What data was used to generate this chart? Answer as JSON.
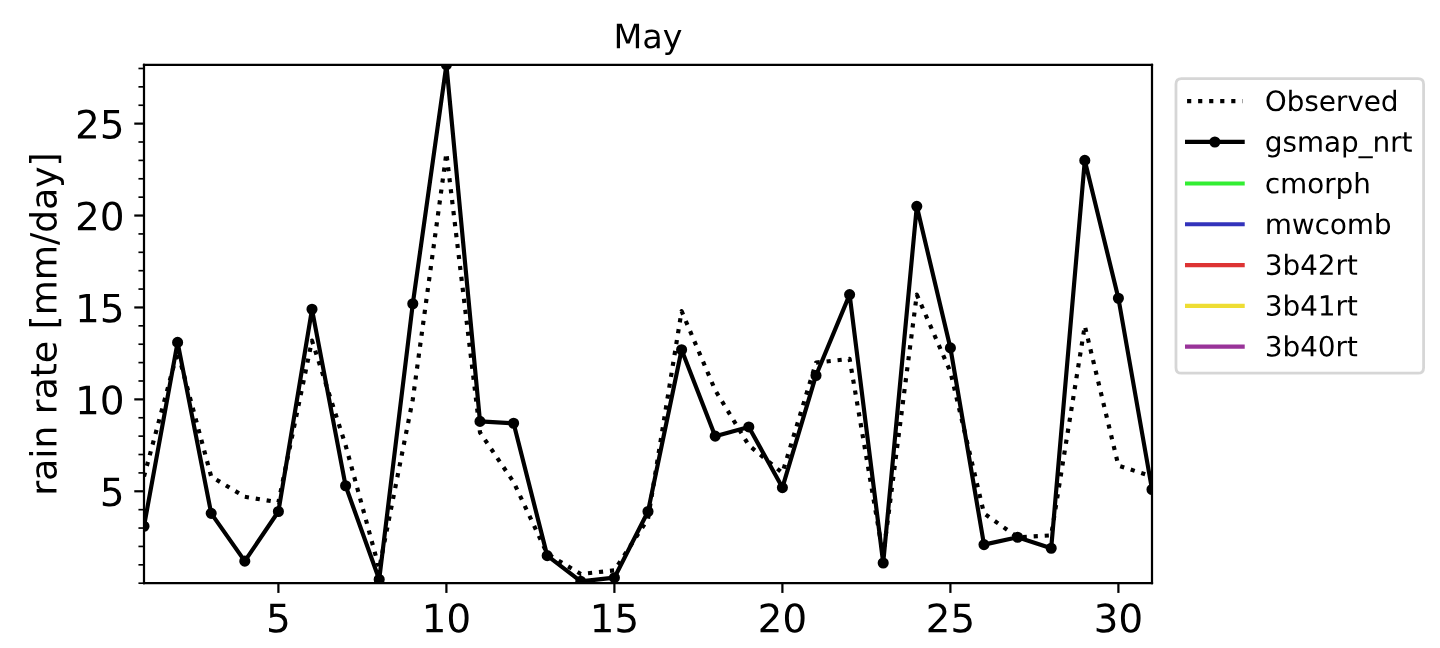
{
  "chart_data": {
    "type": "line",
    "title": "May",
    "ylabel": "rain rate [mm/day]",
    "x": [
      1,
      2,
      3,
      4,
      5,
      6,
      7,
      8,
      9,
      10,
      11,
      12,
      13,
      14,
      15,
      16,
      17,
      18,
      19,
      20,
      21,
      22,
      23,
      24,
      25,
      26,
      27,
      28,
      29,
      30,
      31
    ],
    "xlim": [
      1,
      31
    ],
    "xticks": [
      5,
      10,
      15,
      20,
      25,
      30
    ],
    "ylim": [
      0,
      28.2
    ],
    "yticks": [
      5,
      10,
      15,
      20,
      25
    ],
    "grid": false,
    "legend": "right",
    "series": [
      {
        "name": "Observed",
        "color": "#000000",
        "line_style": "dotted",
        "marker": "none",
        "values": [
          5.8,
          12.6,
          5.8,
          4.7,
          4.4,
          13.2,
          7.5,
          0.8,
          10.0,
          23.4,
          8.2,
          5.5,
          1.6,
          0.5,
          0.7,
          3.5,
          14.8,
          10.5,
          7.5,
          6.0,
          12.0,
          12.2,
          1.5,
          15.7,
          11.5,
          3.8,
          2.5,
          2.6,
          14.0,
          6.4,
          5.8
        ]
      },
      {
        "name": "gsmap_nrt",
        "color": "#000000",
        "line_style": "solid",
        "marker": "circle",
        "values": [
          3.1,
          13.1,
          3.8,
          1.2,
          3.9,
          14.9,
          5.3,
          0.2,
          15.2,
          28.2,
          8.8,
          8.7,
          1.5,
          0.1,
          0.3,
          3.9,
          12.7,
          8.0,
          8.5,
          5.2,
          11.3,
          15.7,
          1.1,
          20.5,
          12.8,
          2.1,
          2.5,
          1.9,
          23.0,
          15.5,
          5.1
        ]
      },
      {
        "name": "cmorph",
        "color": "#33ee33",
        "line_style": "solid",
        "marker": "none",
        "values": [
          null,
          null,
          null,
          null,
          null,
          null,
          null,
          null,
          null,
          null,
          null,
          null,
          null,
          null,
          null,
          null,
          null,
          null,
          null,
          null,
          null,
          null,
          null,
          null,
          null,
          null,
          null,
          null,
          null,
          null,
          null
        ]
      },
      {
        "name": "mwcomb",
        "color": "#3333bb",
        "line_style": "solid",
        "marker": "none",
        "values": [
          null,
          null,
          null,
          null,
          null,
          null,
          null,
          null,
          null,
          null,
          null,
          null,
          null,
          null,
          null,
          null,
          null,
          null,
          null,
          null,
          null,
          null,
          null,
          null,
          null,
          null,
          null,
          null,
          null,
          null,
          null
        ]
      },
      {
        "name": "3b42rt",
        "color": "#dd3333",
        "line_style": "solid",
        "marker": "none",
        "values": [
          null,
          null,
          null,
          null,
          null,
          null,
          null,
          null,
          null,
          null,
          null,
          null,
          null,
          null,
          null,
          null,
          null,
          null,
          null,
          null,
          null,
          null,
          null,
          null,
          null,
          null,
          null,
          null,
          null,
          null,
          null
        ]
      },
      {
        "name": "3b41rt",
        "color": "#eedd33",
        "line_style": "solid",
        "marker": "none",
        "values": [
          null,
          null,
          null,
          null,
          null,
          null,
          null,
          null,
          null,
          null,
          null,
          null,
          null,
          null,
          null,
          null,
          null,
          null,
          null,
          null,
          null,
          null,
          null,
          null,
          null,
          null,
          null,
          null,
          null,
          null,
          null
        ]
      },
      {
        "name": "3b40rt",
        "color": "#993399",
        "line_style": "solid",
        "marker": "none",
        "values": [
          null,
          null,
          null,
          null,
          null,
          null,
          null,
          null,
          null,
          null,
          null,
          null,
          null,
          null,
          null,
          null,
          null,
          null,
          null,
          null,
          null,
          null,
          null,
          null,
          null,
          null,
          null,
          null,
          null,
          null,
          null
        ]
      }
    ]
  }
}
